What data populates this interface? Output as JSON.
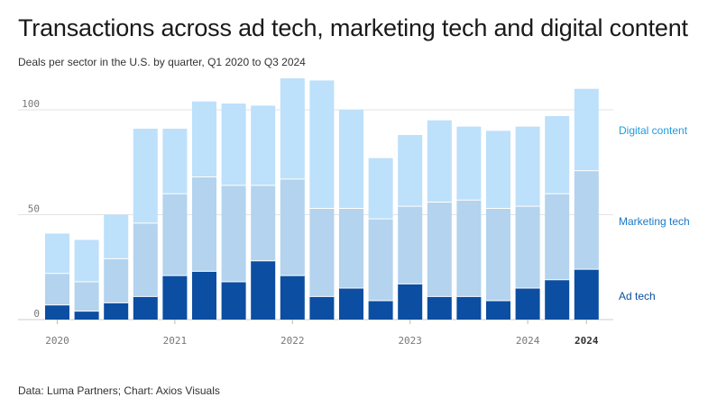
{
  "title": "Transactions across ad tech, marketing tech and digital content",
  "subtitle": "Deals per sector in the U.S. by quarter, Q1 2020 to Q3 2024",
  "source": "Data: Luma Partners; Chart: Axios Visuals",
  "colors": {
    "ad_tech": "#0b4ea2",
    "marketing_tech": "#b3d3ee",
    "digital_content": "#bde0fb",
    "gridline": "#e3e3e3",
    "legend_digital": "#1e9bdf",
    "legend_marketing": "#1a78c8",
    "legend_ad": "#0b4ea2"
  },
  "chart_data": {
    "type": "bar",
    "stacked": true,
    "categories": [
      "Q1 2020",
      "Q2 2020",
      "Q3 2020",
      "Q4 2020",
      "Q1 2021",
      "Q2 2021",
      "Q3 2021",
      "Q4 2021",
      "Q1 2022",
      "Q2 2022",
      "Q3 2022",
      "Q4 2022",
      "Q1 2023",
      "Q2 2023",
      "Q3 2023",
      "Q4 2023",
      "Q1 2024",
      "Q2 2024",
      "Q3 2024"
    ],
    "series": [
      {
        "name": "Ad tech",
        "values": [
          7,
          4,
          8,
          11,
          21,
          23,
          18,
          28,
          21,
          11,
          15,
          9,
          17,
          11,
          11,
          9,
          15,
          19,
          24
        ]
      },
      {
        "name": "Marketing tech",
        "values": [
          15,
          14,
          21,
          35,
          39,
          45,
          46,
          36,
          46,
          42,
          38,
          39,
          37,
          45,
          46,
          44,
          39,
          41,
          47
        ]
      },
      {
        "name": "Digital content",
        "values": [
          19,
          20,
          21,
          45,
          31,
          36,
          39,
          38,
          48,
          61,
          47,
          29,
          34,
          39,
          35,
          37,
          38,
          37,
          39
        ]
      }
    ],
    "x_tick_labels": [
      {
        "label": "2020",
        "index": 0,
        "bold": false
      },
      {
        "label": "2021",
        "index": 4,
        "bold": false
      },
      {
        "label": "2022",
        "index": 8,
        "bold": false
      },
      {
        "label": "2023",
        "index": 12,
        "bold": false
      },
      {
        "label": "2024",
        "index": 16,
        "bold": false
      },
      {
        "label": "2024",
        "index": 18,
        "bold": true
      }
    ],
    "y_ticks": [
      0,
      50,
      100
    ],
    "ylim": [
      0,
      115
    ],
    "grid": true,
    "legend_placement": "right, direct labels"
  }
}
